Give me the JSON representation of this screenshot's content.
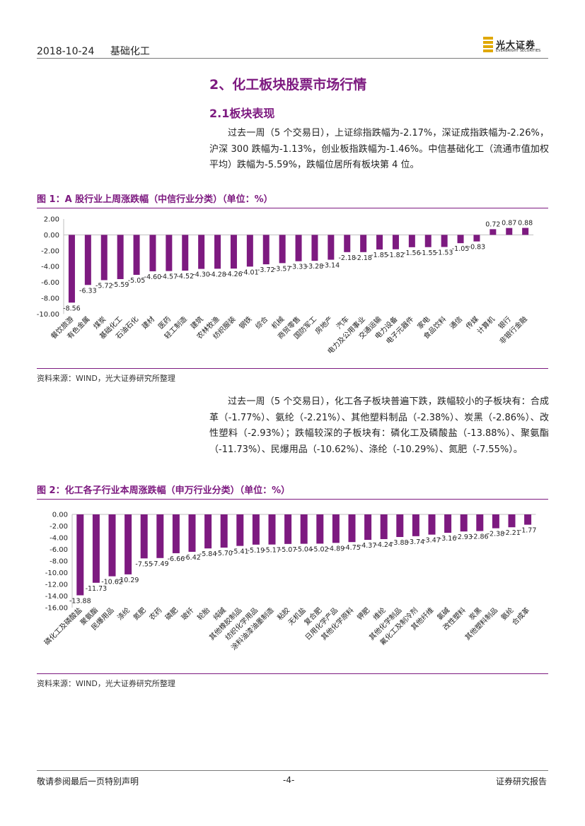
{
  "header": {
    "date": "2018-10-24",
    "section": "基础化工",
    "logo_name": "光大证券",
    "logo_sub": "EVERBRIGHT SECURITIES"
  },
  "heading": {
    "h1": "2、化工板块股票市场行情",
    "h2": "2.1板块表现"
  },
  "paragraph1": "过去一周（5 个交易日），上证综指跌幅为-2.17%，深证成指跌幅为-2.26%，沪深 300 跌幅为-1.13%，创业板指跌幅为-1.46%。中信基础化工（流通市值加权平均）跌幅为-5.59%，跌幅位居所有板块第 4 位。",
  "paragraph2": "过去一周（5 个交易日），化工各子板块普遍下跌，跌幅较小的子板块有：合成革（-1.77%）、氨纶（-2.21%）、其他塑料制品（-2.38%）、炭黑（-2.86%）、改性塑料（-2.93%）；跌幅较深的子板块有：磷化工及磷酸盐（-13.88%）、聚氨酯（-11.73%）、民爆用品（-10.62%）、涤纶（-10.29%）、氮肥（-7.55%）。",
  "figure1": {
    "title": "图 1：A 股行业上周涨跌幅（中信行业分类）（单位：%）",
    "source": "资料来源：WIND，光大证券研究所整理"
  },
  "figure2": {
    "title": "图 2：化工各子行业本周涨跌幅（申万行业分类）（单位：%）",
    "source": "资料来源：WIND，光大证券研究所整理"
  },
  "chart_data": [
    {
      "type": "bar",
      "categories": [
        "餐饮旅游",
        "有色金属",
        "煤炭",
        "基础化工",
        "石油石化",
        "建材",
        "医药",
        "轻工制造",
        "建筑",
        "农林牧渔",
        "纺织服装",
        "钢铁",
        "综合",
        "机械",
        "商贸零售",
        "国防军工",
        "房地产",
        "汽车",
        "电力及公用事业",
        "交通运输",
        "电力设备",
        "电子元器件",
        "家电",
        "食品饮料",
        "通信",
        "传媒",
        "计算机",
        "银行",
        "非银行金融"
      ],
      "values": [
        -8.56,
        -6.33,
        -5.72,
        -5.59,
        -5.05,
        -4.6,
        -4.57,
        -4.52,
        -4.3,
        -4.28,
        -4.26,
        -4.01,
        -3.72,
        -3.57,
        -3.33,
        -3.28,
        -3.14,
        -2.18,
        -2.18,
        -1.85,
        -1.82,
        -1.56,
        -1.55,
        -1.53,
        -1.05,
        -0.83,
        0.72,
        0.87,
        0.88
      ],
      "value_labels": [
        "-8.56",
        "-6.33",
        "-5.72",
        "-5.59",
        "-5.05",
        "-4.60",
        "-4.57",
        "-4.52",
        "-4.30",
        "-4.28",
        "-4.26",
        "-4.01",
        "-3.72",
        "-3.57",
        "-3.33",
        "-3.28",
        "-3.14",
        "-2.18",
        "-2.18",
        "-1.85",
        "-1.82",
        "-1.56",
        "-1.55",
        "-1.53",
        "-1.05",
        "-0.83",
        "0.72",
        "0.87",
        "0.88"
      ],
      "ylim": [
        -10,
        2
      ],
      "yticks": [
        "2.00",
        "0.00",
        "-2.00",
        "-4.00",
        "-6.00",
        "-8.00",
        "-10.00"
      ],
      "color": "#7d1a80"
    },
    {
      "type": "bar",
      "categories": [
        "磷化工及磷酸盐",
        "聚氨酯",
        "民爆用品",
        "涤纶",
        "氮肥",
        "农药",
        "磷肥",
        "玻纤",
        "轮胎",
        "纯碱",
        "其他橡胶制品",
        "纺织化学用品",
        "涂料油漆油墨制造",
        "粘胶",
        "无机盐",
        "复合肥",
        "日用化学产品",
        "其他化学原料",
        "钾肥",
        "维纶",
        "其他化学制品",
        "氟化工及制冷剂",
        "其他纤维",
        "氯碱",
        "改性塑料",
        "炭黑",
        "其他塑料制品",
        "氨纶",
        "合成革"
      ],
      "values": [
        -13.88,
        -11.73,
        -10.62,
        -10.29,
        -7.55,
        -7.49,
        -6.66,
        -6.42,
        -5.84,
        -5.7,
        -5.41,
        -5.19,
        -5.17,
        -5.07,
        -5.04,
        -5.02,
        -4.89,
        -4.75,
        -4.37,
        -4.24,
        -3.88,
        -3.74,
        -3.47,
        -3.16,
        -2.93,
        -2.86,
        -2.38,
        -2.21,
        -1.77
      ],
      "value_labels": [
        "-13.88",
        "-11.73",
        "-10.62",
        "-10.29",
        "-7.55",
        "-7.49",
        "-6.66",
        "-6.42",
        "-5.84",
        "-5.70",
        "-5.41",
        "-5.19",
        "-5.17",
        "-5.07",
        "-5.04",
        "-5.02",
        "-4.89",
        "-4.75",
        "-4.37",
        "-4.24",
        "-3.88",
        "-3.74",
        "-3.47",
        "-3.16",
        "-2.93",
        "-2.86",
        "-2.38",
        "-2.21",
        "-1.77"
      ],
      "ylim": [
        -16,
        0
      ],
      "yticks": [
        "0.00",
        "-2.00",
        "-4.00",
        "-6.00",
        "-8.00",
        "-10.00",
        "-12.00",
        "-14.00",
        "-16.00"
      ],
      "color": "#7d1a80"
    }
  ],
  "footer": {
    "left": "敬请参阅最后一页特别声明",
    "center": "-4-",
    "right": "证券研究报告"
  }
}
